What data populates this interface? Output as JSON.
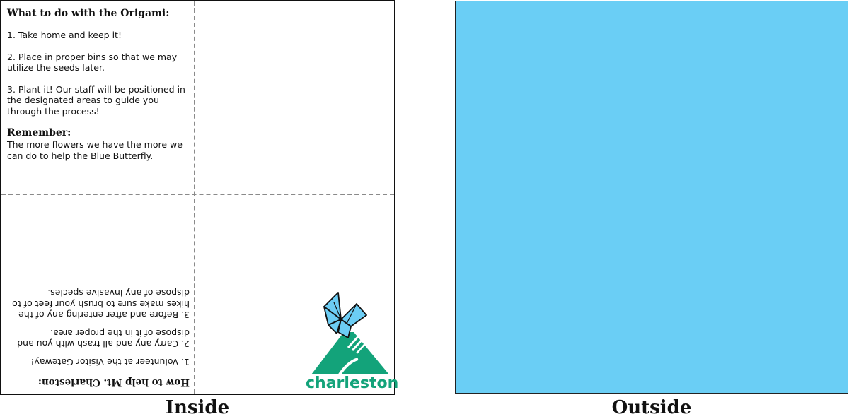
{
  "inside": {
    "instructions": {
      "title": "What to do with the Origami:",
      "items": [
        "1. Take home and keep it!",
        "2. Place in proper bins so that we may utilize the seeds later.",
        "3. Plant it! Our staff will be positioned in the designated areas to guide you through the process!"
      ],
      "remember_title": "Remember:",
      "remember_text": "The more flowers we have the more we can do to help the Blue Butterfly."
    },
    "help": {
      "title": "How to help Mt. Charleston:",
      "items": [
        "1. Volunteer at the Visitor Gateway!",
        "2. Carry any and all trash with you and dispose of it in the proper area.",
        "3. Before and after entering any of the hikes make sure to brush your feet of to dispose of any invasive species."
      ]
    },
    "logo": {
      "wordmark": "charleston",
      "icon": "butterfly-mountain-logo",
      "colors": {
        "green": "#13a37a",
        "blue": "#6ccdf4"
      }
    }
  },
  "outside": {
    "color": "#6acef5"
  },
  "captions": {
    "inside": "Inside",
    "outside": "Outside"
  },
  "colors": {
    "border": "#111111",
    "fold_line": "#8a8a8a"
  }
}
